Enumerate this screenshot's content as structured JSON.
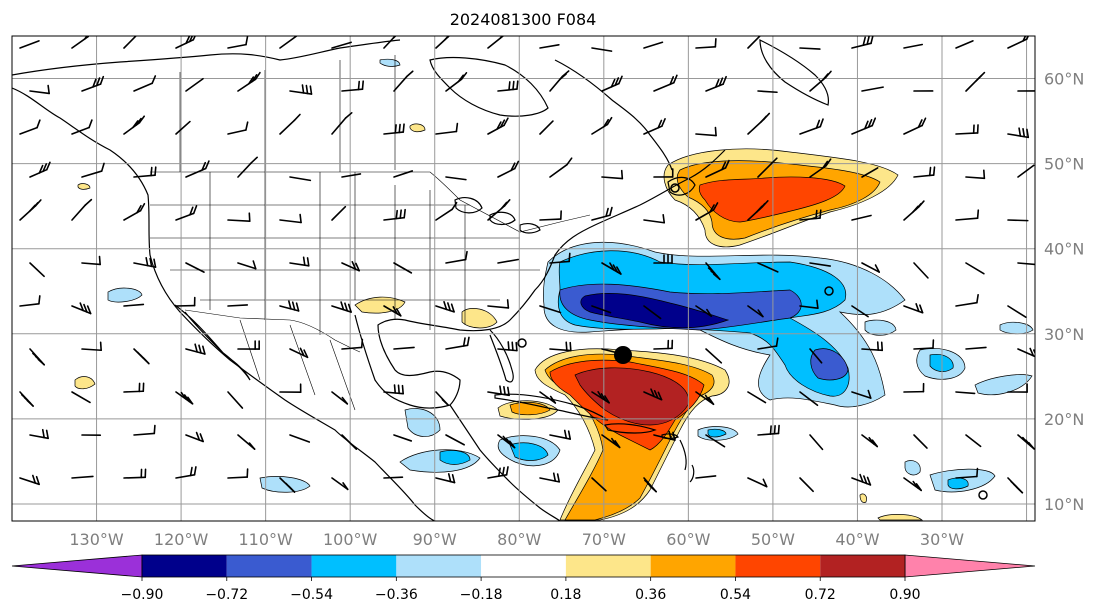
{
  "title": "2024081300 F084",
  "map": {
    "lon_range": [
      -140,
      -19
    ],
    "lat_range": [
      8,
      65
    ],
    "gridline_color": "#999999",
    "longitude_labels": [
      "130°W",
      "120°W",
      "110°W",
      "100°W",
      "90°W",
      "80°W",
      "70°W",
      "60°W",
      "50°W",
      "40°W",
      "30°W"
    ],
    "latitude_labels": [
      "60°N",
      "50°N",
      "40°N",
      "30°N",
      "20°N",
      "10°N"
    ],
    "marker_lon_lat": [
      -71,
      27.5
    ]
  },
  "colorbar": {
    "ticks": [
      "−0.90",
      "−0.72",
      "−0.54",
      "−0.36",
      "−0.18",
      "0.18",
      "0.36",
      "0.54",
      "0.72",
      "0.90"
    ],
    "colors": [
      "#9b30d9",
      "#00008b",
      "#3a5bd0",
      "#00bfff",
      "#aee0fa",
      "#ffffff",
      "#fde68a",
      "#ffa500",
      "#ff4500",
      "#b22222",
      "#ff82ab"
    ]
  },
  "colors": {
    "land_outline": "#000000",
    "contour_outline": "#000000"
  }
}
